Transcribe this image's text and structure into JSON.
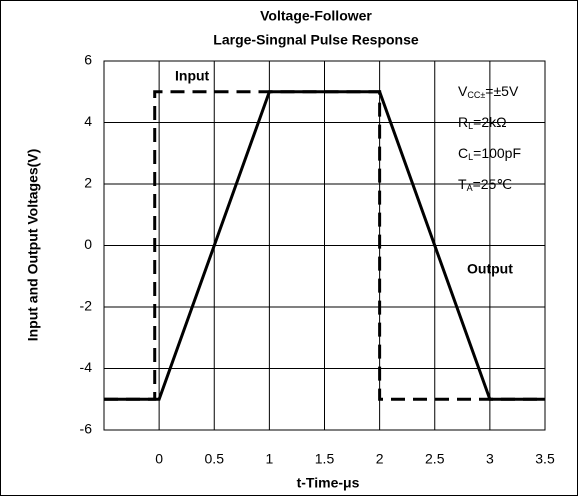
{
  "chart_data": {
    "type": "line",
    "title": [
      "Voltage-Follower",
      "Large-Singnal Pulse Response"
    ],
    "x_label": "t-Time-μs",
    "y_label": "Input and Output Voltages(V)",
    "xlim": [
      -0.5,
      3.5
    ],
    "xticks": [
      0,
      0.5,
      1,
      1.5,
      2,
      2.5,
      3,
      3.5
    ],
    "ylim": [
      -6,
      6
    ],
    "yticks": [
      -6,
      -4,
      -2,
      0,
      2,
      4,
      6
    ],
    "grid": true,
    "series": [
      {
        "name": "Input",
        "color": "#000000",
        "dash": true,
        "x": [
          -0.5,
          -0.04,
          -0.04,
          2,
          2,
          3.5
        ],
        "values": [
          -5,
          -5,
          5,
          5,
          -5,
          -5
        ]
      },
      {
        "name": "Output",
        "color": "#000000",
        "dash": false,
        "x": [
          -0.5,
          0,
          1,
          2,
          3,
          3.5
        ],
        "values": [
          -5,
          -5,
          5,
          5,
          -5,
          -5
        ]
      }
    ],
    "conditions": [
      {
        "main": "V",
        "sub": "CC±",
        "rest": "=±5V"
      },
      {
        "main": "R",
        "sub": "L",
        "rest": "=2kΩ"
      },
      {
        "main": "C",
        "sub": "L",
        "rest": "=100pF"
      },
      {
        "main": "T",
        "sub": "A",
        "rest": "=25℃"
      }
    ]
  }
}
